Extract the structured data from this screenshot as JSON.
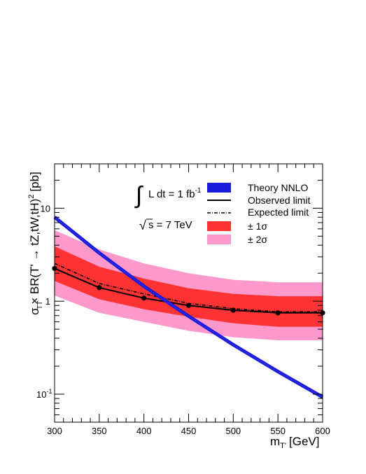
{
  "chart_data": {
    "type": "line",
    "xlabel": "m",
    "xlabel_sub": "T'",
    "xlabel_unit": "[GeV]",
    "ylabel": "σ   × BR(T' → tZ,tW,tH)",
    "ylabel_sub": "TT",
    "ylabel_sup": "2",
    "ylabel_unit": "[pb]",
    "xlim": [
      300,
      600
    ],
    "ylim": [
      0.05,
      30
    ],
    "yscale": "log",
    "x_ticks": [
      "300",
      "350",
      "400",
      "450",
      "500",
      "550",
      "600"
    ],
    "y_ticks": [
      {
        "base": "10",
        "exp": "-1",
        "value": 0.1
      },
      {
        "base": "1",
        "exp": "",
        "value": 1
      },
      {
        "base": "10",
        "exp": "",
        "value": 10
      }
    ],
    "annotations": {
      "lumi_integral": "∫",
      "lumi_text": "L dt = 1 fb",
      "lumi_sup": "-1",
      "energy_root": "√",
      "energy_text": "s = 7 TeV"
    },
    "series": [
      {
        "name": "Theory NNLO",
        "style": "band",
        "color": "#1a1adb",
        "x": [
          300,
          350,
          400,
          450,
          500,
          550,
          600
        ],
        "y": [
          8.0,
          3.3,
          1.45,
          0.69,
          0.34,
          0.175,
          0.093
        ]
      },
      {
        "name": "Observed limit",
        "style": "solid-markers",
        "color": "#000000",
        "x": [
          300,
          350,
          400,
          450,
          500,
          550,
          600
        ],
        "y": [
          2.25,
          1.4,
          1.08,
          0.9,
          0.8,
          0.75,
          0.75
        ]
      },
      {
        "name": "Expected limit",
        "style": "dash-dot",
        "color": "#000000",
        "x": [
          300,
          350,
          400,
          450,
          500,
          550,
          600
        ],
        "y": [
          2.55,
          1.55,
          1.2,
          0.95,
          0.83,
          0.77,
          0.77
        ]
      },
      {
        "name": "± 1σ",
        "style": "band",
        "color": "#ff3333",
        "x": [
          300,
          350,
          400,
          450,
          500,
          550,
          600
        ],
        "low": [
          1.65,
          1.05,
          0.82,
          0.68,
          0.58,
          0.53,
          0.53
        ],
        "high": [
          3.9,
          2.35,
          1.75,
          1.38,
          1.2,
          1.13,
          1.13
        ]
      },
      {
        "name": "± 2σ",
        "style": "band",
        "color": "#ff99cc",
        "x": [
          300,
          350,
          400,
          450,
          500,
          550,
          600
        ],
        "low": [
          1.15,
          0.75,
          0.6,
          0.48,
          0.41,
          0.38,
          0.38
        ],
        "high": [
          5.8,
          3.6,
          2.55,
          2.0,
          1.7,
          1.6,
          1.6
        ]
      }
    ]
  }
}
